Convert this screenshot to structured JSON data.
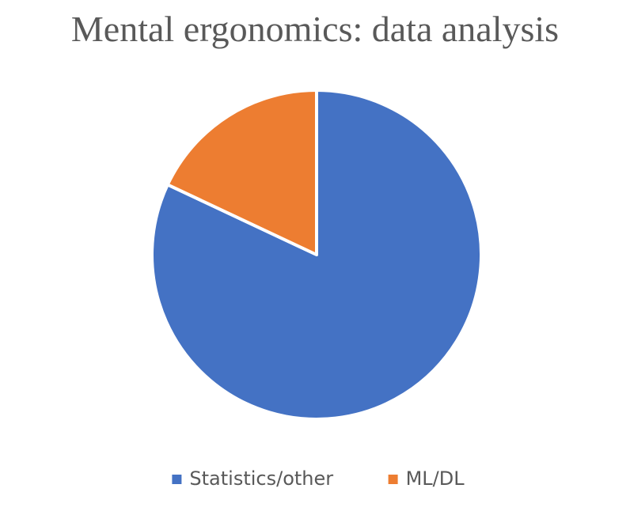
{
  "chart_data": {
    "type": "pie",
    "title": "Mental ergonomics: data analysis",
    "categories": [
      "Statistics/other",
      "ML/DL"
    ],
    "values": [
      82,
      18
    ],
    "colors": [
      "#4472c4",
      "#ed7d31"
    ],
    "legend": "bottom"
  }
}
